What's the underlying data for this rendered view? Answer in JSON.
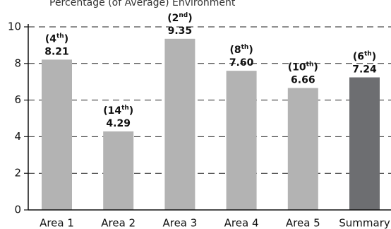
{
  "title": "Percentage (of Average) Environment",
  "chart_data": {
    "type": "bar",
    "title": "Percentage (of Average) Environment",
    "xlabel": "",
    "ylabel": "",
    "ylim": [
      0,
      10
    ],
    "yticks": [
      0,
      2,
      4,
      6,
      8,
      10
    ],
    "grid": "dashed horizontal at 2, 4, 6, 8, 10",
    "categories": [
      "Area 1",
      "Area 2",
      "Area 3",
      "Area 4",
      "Area 5",
      "Summary"
    ],
    "values": [
      8.21,
      4.29,
      9.35,
      7.6,
      6.66,
      7.24
    ],
    "value_labels": [
      "8.21",
      "4.29",
      "9.35",
      "7.60",
      "6.66",
      "7.24"
    ],
    "ranks": [
      {
        "num": "4",
        "sup": "th"
      },
      {
        "num": "14",
        "sup": "th"
      },
      {
        "num": "2",
        "sup": "nd"
      },
      {
        "num": "8",
        "sup": "th"
      },
      {
        "num": "10",
        "sup": "th"
      },
      {
        "num": "6",
        "sup": "th"
      }
    ],
    "colors": [
      "#b3b3b3",
      "#b3b3b3",
      "#b3b3b3",
      "#b3b3b3",
      "#b3b3b3",
      "#6d6e71"
    ]
  }
}
